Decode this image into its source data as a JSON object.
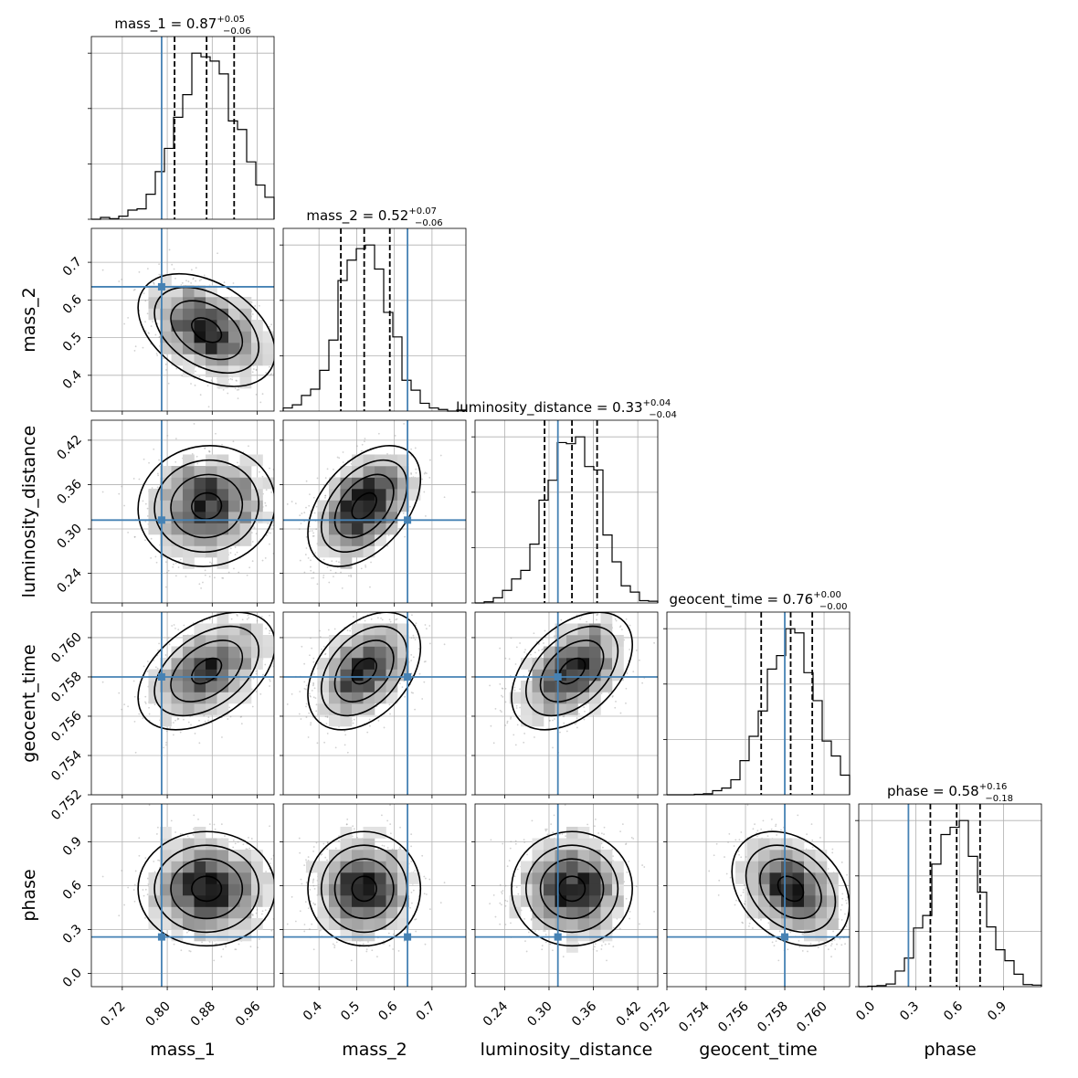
{
  "chart_data": {
    "type": "corner",
    "parameters": [
      {
        "key": "mass_1",
        "label": "mass_1",
        "title_main": "mass_1 = 0.87",
        "title_sup": "+0.05",
        "title_sub": "−0.06",
        "range": [
          0.665,
          0.99
        ],
        "ticks": [
          0.72,
          0.8,
          0.88,
          0.96
        ],
        "tick_labels": [
          "0.72",
          "0.80",
          "0.88",
          "0.96"
        ],
        "median": 0.87,
        "lo": 0.813,
        "hi": 0.919,
        "truth": 0.79
      },
      {
        "key": "mass_2",
        "label": "mass_2",
        "title_main": "mass_2 = 0.52",
        "title_sup": "+0.07",
        "title_sub": "−0.06",
        "range": [
          0.305,
          0.79
        ],
        "ticks": [
          0.4,
          0.5,
          0.6,
          0.7
        ],
        "tick_labels": [
          "0.4",
          "0.5",
          "0.6",
          "0.7"
        ],
        "median": 0.52,
        "lo": 0.458,
        "hi": 0.588,
        "truth": 0.635
      },
      {
        "key": "luminosity_distance",
        "label": "luminosity_distance",
        "title_main": "luminosity_distance = 0.33",
        "title_sup": "+0.04",
        "title_sub": "−0.04",
        "range": [
          0.2,
          0.447
        ],
        "ticks": [
          0.24,
          0.3,
          0.36,
          0.42
        ],
        "tick_labels": [
          "0.24",
          "0.30",
          "0.36",
          "0.42"
        ],
        "median": 0.331,
        "lo": 0.294,
        "hi": 0.365,
        "truth": 0.312
      },
      {
        "key": "geocent_time",
        "label": "geocent_time",
        "title_main": "geocent_time = 0.76",
        "title_sup": "+0.00",
        "title_sub": "−0.00",
        "range": [
          0.752,
          0.7613
        ],
        "ticks": [
          0.752,
          0.754,
          0.756,
          0.758,
          0.76
        ],
        "tick_labels": [
          "0.752",
          "0.754",
          "0.756",
          "0.758",
          "0.760"
        ],
        "median": 0.7583,
        "lo": 0.7568,
        "hi": 0.7594,
        "truth": 0.758
      },
      {
        "key": "phase",
        "label": "phase",
        "title_main": "phase = 0.58",
        "title_sup": "+0.16",
        "title_sub": "−0.18",
        "range": [
          -0.09,
          1.16
        ],
        "ticks": [
          0.0,
          0.3,
          0.6,
          0.9
        ],
        "tick_labels": [
          "0.0",
          "0.3",
          "0.6",
          "0.9"
        ],
        "median": 0.58,
        "lo": 0.4,
        "hi": 0.74,
        "truth": 0.25
      }
    ],
    "correlations": [
      [
        1,
        -0.4,
        0.05,
        0.45,
        0.0
      ],
      [
        -0.4,
        1,
        0.45,
        0.4,
        0.0
      ],
      [
        0.05,
        0.45,
        1,
        0.45,
        0.0
      ],
      [
        0.45,
        0.4,
        0.45,
        1,
        -0.3
      ],
      [
        0.0,
        0.0,
        0.0,
        -0.3,
        1
      ]
    ],
    "grid": true,
    "truth_color": "#4682b4",
    "contour_color": "#000000",
    "quantile_line_style": "dashed"
  }
}
